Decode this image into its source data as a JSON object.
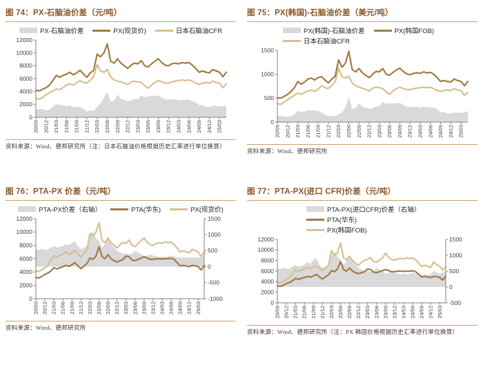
{
  "colors": {
    "title": "#8a5526",
    "rule": "#c9a169",
    "area": "#d9d9d9",
    "line_dark": "#a17a45",
    "line_light": "#d6c08f",
    "axis_text": "#3f3f3f",
    "axis_line": "#808080",
    "legend_text": "#1f1f1f",
    "source_text": "#3c332a"
  },
  "chart_data": [
    {
      "id": "fig74",
      "type": "line",
      "title": "图 74：PX-石脑油价差（元/吨）",
      "source": "资料来源：Wind、德邦研究所（注：日本石脑油价格根据历史汇率进行单位换算）",
      "legend": [
        {
          "type": "area",
          "label": "PX-石脑油价差"
        },
        {
          "type": "line-dark",
          "label": "PX(现货价)"
        },
        {
          "type": "line-light",
          "label": "日本石脑油CFR"
        }
      ],
      "legend_rows": [
        [
          0,
          1,
          2
        ]
      ],
      "legend_class": "center",
      "left_axis": {
        "min": 0,
        "max": 12000,
        "step": 2000
      },
      "right_axis": null,
      "x_tick_every": 3,
      "x_ticklabels": [
        "20/09",
        "20/12",
        "21/03",
        "21/06",
        "21/09",
        "21/12",
        "22/03",
        "22/06",
        "22/09",
        "22/12",
        "23/03",
        "23/06",
        "23/09",
        "23/12",
        "24/03",
        "24/06",
        "24/09",
        "24/12",
        "25/03"
      ],
      "series": [
        {
          "name": "PX-石脑油价差",
          "role": "area",
          "axis": "left",
          "values": [
            1200,
            1300,
            1250,
            1100,
            1200,
            1600,
            2100,
            1900,
            1900,
            1700,
            1800,
            1600,
            1600,
            1600,
            1300,
            900,
            1100,
            1000,
            1600,
            2200,
            3000,
            4000,
            2400,
            2600,
            3500,
            2900,
            2700,
            2500,
            2600,
            2800,
            2800,
            3400,
            3100,
            3300,
            3300,
            3300,
            3400,
            3000,
            2800,
            2700,
            2800,
            2800,
            2600,
            2700,
            2700,
            2700,
            2500,
            2300,
            1900,
            1900,
            1600,
            1600,
            1800,
            1800,
            1700,
            1700,
            1800
          ]
        },
        {
          "name": "PX(现货价)",
          "role": "line-dark",
          "axis": "left",
          "values": [
            4200,
            4100,
            4350,
            4600,
            5000,
            5700,
            6500,
            6200,
            6500,
            6700,
            7000,
            6600,
            6900,
            7300,
            6700,
            6200,
            6900,
            7300,
            9800,
            9400,
            10000,
            11400,
            8700,
            8400,
            9100,
            8400,
            8000,
            7600,
            8100,
            8400,
            8300,
            8800,
            8000,
            7800,
            8300,
            8700,
            9100,
            8500,
            8100,
            8000,
            8300,
            8400,
            8300,
            8500,
            8400,
            8500,
            8100,
            7600,
            7000,
            7200,
            7000,
            6900,
            7400,
            7200,
            7000,
            6300,
            7000
          ]
        },
        {
          "name": "日本石脑油CFR",
          "role": "line-light",
          "axis": "left",
          "values": [
            3000,
            2800,
            3100,
            3500,
            3800,
            4100,
            4400,
            4300,
            4600,
            5000,
            5200,
            5000,
            5300,
            5700,
            5400,
            5300,
            5800,
            6300,
            8200,
            7200,
            7000,
            7400,
            6300,
            5800,
            5600,
            5500,
            5300,
            5100,
            5500,
            5600,
            5500,
            5400,
            4900,
            4500,
            5000,
            5400,
            5700,
            5500,
            5300,
            5300,
            5500,
            5600,
            5700,
            5800,
            5700,
            5800,
            5600,
            5300,
            5100,
            5300,
            5400,
            5300,
            5600,
            5400,
            5300,
            4600,
            5200
          ]
        }
      ]
    },
    {
      "id": "fig75",
      "type": "line",
      "title": "图 75：PX(韩国)-石脑油价差（美元/吨）",
      "source": "资料来源：Wind、德邦研究所",
      "legend": [
        {
          "type": "area",
          "label": "PX(韩国)-石脑油价差"
        },
        {
          "type": "line-dark",
          "label": "PX(韩国FOB)"
        },
        {
          "type": "line-light",
          "label": "日本石脑油CFR"
        }
      ],
      "legend_rows": [
        [
          0,
          1
        ],
        [
          2
        ]
      ],
      "legend_class": "left2",
      "left_axis": {
        "min": 0,
        "max": 1500,
        "step": 500
      },
      "right_axis": null,
      "x_tick_every": 3,
      "x_ticklabels": [
        "20/09",
        "20/12",
        "21/03",
        "21/06",
        "21/09",
        "21/12",
        "22/03",
        "22/06",
        "22/09",
        "22/12",
        "23/03",
        "23/06",
        "23/09",
        "23/12",
        "24/03",
        "24/06",
        "24/09",
        "24/12",
        "25/03"
      ],
      "series": [
        {
          "name": "PX(韩国)-石脑油价差",
          "role": "area",
          "axis": "left",
          "values": [
            120,
            130,
            120,
            110,
            130,
            160,
            240,
            210,
            220,
            250,
            250,
            240,
            240,
            190,
            160,
            120,
            130,
            120,
            170,
            200,
            310,
            520,
            280,
            290,
            390,
            320,
            300,
            280,
            290,
            330,
            330,
            420,
            370,
            400,
            390,
            390,
            400,
            360,
            330,
            310,
            320,
            320,
            300,
            320,
            310,
            310,
            300,
            270,
            210,
            210,
            180,
            180,
            200,
            200,
            190,
            200,
            230
          ]
        },
        {
          "name": "PX(韩国FOB)",
          "role": "line-dark",
          "axis": "left",
          "values": [
            510,
            500,
            540,
            580,
            640,
            720,
            850,
            790,
            840,
            900,
            920,
            880,
            930,
            950,
            880,
            820,
            900,
            960,
            1300,
            1150,
            1230,
            1480,
            1100,
            1050,
            1120,
            1030,
            980,
            930,
            1000,
            1060,
            1050,
            1120,
            1000,
            980,
            1040,
            1090,
            1130,
            1060,
            1010,
            990,
            1020,
            1030,
            1020,
            1050,
            1030,
            1040,
            1000,
            930,
            850,
            870,
            850,
            840,
            900,
            870,
            850,
            760,
            850
          ]
        },
        {
          "name": "日本石脑油CFR",
          "role": "line-light",
          "axis": "left",
          "values": [
            390,
            370,
            420,
            470,
            510,
            560,
            610,
            580,
            620,
            650,
            670,
            640,
            690,
            760,
            720,
            700,
            770,
            840,
            1130,
            950,
            920,
            960,
            820,
            760,
            730,
            710,
            680,
            650,
            710,
            730,
            720,
            700,
            630,
            580,
            650,
            700,
            730,
            700,
            680,
            680,
            700,
            710,
            720,
            730,
            720,
            730,
            700,
            660,
            640,
            660,
            670,
            660,
            700,
            670,
            660,
            560,
            620
          ]
        }
      ]
    },
    {
      "id": "fig76",
      "type": "line",
      "title": "图 76：PTA-PX 价差（元/吨）",
      "source": "资料来源：Wind、德邦研究所",
      "legend": [
        {
          "type": "area",
          "label": "PTA-PX价差（右轴）"
        },
        {
          "type": "line-dark",
          "label": "PTA(华东)"
        },
        {
          "type": "line-light",
          "label": "PX(现货价)"
        }
      ],
      "legend_rows": [
        [
          0,
          1,
          2
        ]
      ],
      "legend_class": "center",
      "left_axis": {
        "min": 0,
        "max": 12000,
        "step": 2000
      },
      "right_axis": {
        "min": -1000,
        "max": 1500,
        "step": 500
      },
      "x_tick_every": 3,
      "x_ticklabels": [
        "20/09",
        "20/12",
        "21/03",
        "21/06",
        "21/09",
        "21/12",
        "22/03",
        "22/06",
        "22/09",
        "22/12",
        "23/03",
        "23/06",
        "23/09",
        "23/12",
        "24/03",
        "24/06",
        "24/09",
        "24/12",
        "25/03"
      ],
      "series": [
        {
          "name": "PTA-PX价差（右轴）",
          "role": "area",
          "axis": "right",
          "values": [
            550,
            520,
            560,
            520,
            540,
            600,
            650,
            600,
            620,
            650,
            700,
            680,
            750,
            800,
            650,
            550,
            600,
            650,
            1000,
            1100,
            900,
            800,
            600,
            700,
            900,
            700,
            600,
            500,
            450,
            400,
            420,
            380,
            420,
            500,
            450,
            400,
            320,
            350,
            380,
            350,
            320,
            300,
            320,
            300,
            320,
            350,
            320,
            300,
            280,
            300,
            280,
            300,
            280,
            300,
            280,
            300,
            320
          ]
        },
        {
          "name": "PTA(华东)",
          "role": "line-dark",
          "axis": "left",
          "values": [
            3200,
            3100,
            3350,
            3650,
            3850,
            4150,
            4650,
            4450,
            4650,
            4800,
            5000,
            4850,
            5100,
            5400,
            4900,
            4500,
            4900,
            5300,
            6100,
            5900,
            6400,
            7800,
            6300,
            6000,
            6600,
            6000,
            5700,
            5500,
            5700,
            5900,
            6400,
            6300,
            5800,
            5700,
            5900,
            6100,
            6300,
            6100,
            5900,
            5900,
            6000,
            6000,
            5950,
            6000,
            6000,
            6050,
            5900,
            5400,
            4900,
            5000,
            4900,
            4800,
            5000,
            4950,
            4800,
            4300,
            5000
          ]
        },
        {
          "name": "PX(现货价)",
          "role": "line-light",
          "axis": "left",
          "values": [
            4200,
            4100,
            4350,
            4600,
            5000,
            5700,
            6500,
            6200,
            6500,
            6700,
            7000,
            6600,
            6900,
            7300,
            6700,
            6200,
            6900,
            7300,
            9800,
            9400,
            10000,
            11400,
            8700,
            8400,
            9100,
            8400,
            8000,
            7600,
            8100,
            8400,
            8300,
            8800,
            8000,
            7800,
            8300,
            8700,
            9100,
            8500,
            8100,
            8000,
            8300,
            8400,
            8300,
            8500,
            8400,
            8500,
            8100,
            7600,
            7000,
            7200,
            7000,
            6900,
            7400,
            7200,
            7000,
            6300,
            7000
          ]
        }
      ]
    },
    {
      "id": "fig77",
      "type": "line",
      "title": "图 77：PTA-PX(进口 CFR)价差（元/吨）",
      "source": "资料来源：Wind、德邦研究所（注：PX 韩国价格根据历史汇率进行单位换算）",
      "legend": [
        {
          "type": "area",
          "label": "PTA-PX(进口CFR)价差（右轴）"
        },
        {
          "type": "line-dark",
          "label": "PTA(华东)"
        },
        {
          "type": "line-light",
          "label": "PX(韩国FOB)"
        }
      ],
      "legend_rows": [
        [
          0
        ],
        [
          1
        ],
        [
          2
        ]
      ],
      "legend_class": "left3",
      "left_axis": {
        "min": 0,
        "max": 12000,
        "step": 2000
      },
      "right_axis": {
        "min": -500,
        "max": 1500,
        "step": 500
      },
      "x_tick_every": 3,
      "x_ticklabels": [
        "20/09",
        "20/12",
        "21/03",
        "21/06",
        "21/09",
        "21/12",
        "22/03",
        "22/06",
        "22/09",
        "22/12",
        "23/03",
        "23/06",
        "23/09",
        "23/12",
        "24/03",
        "24/06",
        "24/09",
        "24/12",
        "25/03"
      ],
      "series": [
        {
          "name": "PTA-PX(进口CFR)价差（右轴）",
          "role": "area",
          "axis": "right",
          "values": [
            600,
            560,
            620,
            560,
            580,
            650,
            700,
            640,
            660,
            700,
            780,
            720,
            850,
            900,
            700,
            600,
            650,
            700,
            1000,
            1100,
            950,
            850,
            700,
            800,
            1000,
            800,
            700,
            600,
            550,
            500,
            520,
            480,
            520,
            600,
            550,
            500,
            420,
            450,
            480,
            450,
            420,
            400,
            420,
            400,
            420,
            450,
            420,
            400,
            380,
            400,
            380,
            400,
            500,
            450,
            420,
            450,
            500
          ]
        },
        {
          "name": "PTA(华东)",
          "role": "line-dark",
          "axis": "left",
          "values": [
            3200,
            3100,
            3350,
            3650,
            3850,
            4150,
            4650,
            4450,
            4650,
            4800,
            5000,
            4850,
            5100,
            5400,
            4900,
            4500,
            4900,
            5300,
            6100,
            5900,
            6400,
            7800,
            6300,
            6000,
            6600,
            6000,
            5700,
            5500,
            5700,
            5900,
            6400,
            6300,
            5800,
            5700,
            5900,
            6100,
            6300,
            6100,
            5900,
            5900,
            6000,
            6000,
            5950,
            6000,
            6000,
            6050,
            5900,
            5400,
            4900,
            5000,
            4900,
            4800,
            5000,
            4950,
            4800,
            4300,
            5000
          ]
        },
        {
          "name": "PX(韩国FOB)",
          "role": "line-light",
          "axis": "left",
          "values": [
            3900,
            3800,
            4100,
            4400,
            4800,
            5400,
            6300,
            5900,
            6200,
            6500,
            6700,
            6400,
            6800,
            7000,
            6500,
            6100,
            6600,
            7100,
            9900,
            8900,
            9500,
            11300,
            8500,
            8100,
            8800,
            8000,
            7500,
            7100,
            7700,
            8100,
            8200,
            8600,
            7800,
            7700,
            8100,
            8500,
            9400,
            8600,
            8200,
            8100,
            8300,
            8400,
            8300,
            8500,
            8400,
            8500,
            8100,
            7500,
            6900,
            7100,
            6900,
            6700,
            7700,
            7200,
            6900,
            6200,
            6800
          ]
        }
      ]
    }
  ]
}
